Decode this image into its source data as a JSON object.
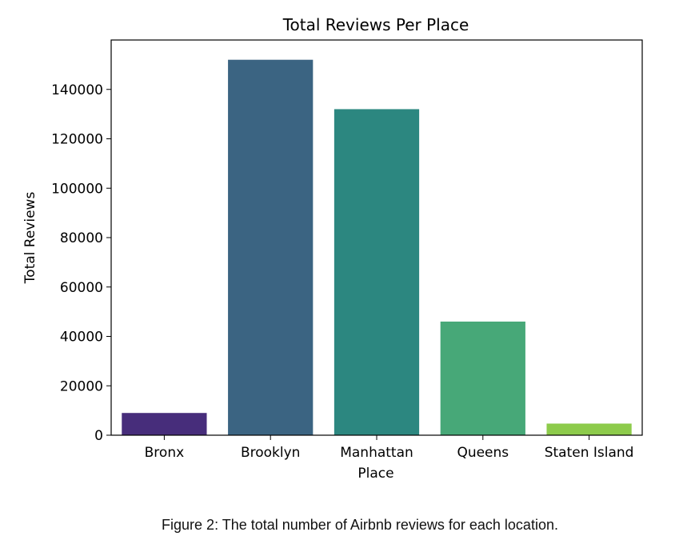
{
  "chart_data": {
    "type": "bar",
    "title": "Total Reviews Per Place",
    "xlabel": "Place",
    "ylabel": "Total Reviews",
    "categories": [
      "Bronx",
      "Brooklyn",
      "Manhattan",
      "Queens",
      "Staten Island"
    ],
    "values": [
      9000,
      152000,
      132000,
      46000,
      4700
    ],
    "colors": [
      "#472d7b",
      "#3b6482",
      "#2c8780",
      "#47a878",
      "#8dcb4b"
    ],
    "ylim": [
      0,
      160000
    ],
    "yticks": [
      0,
      20000,
      40000,
      60000,
      80000,
      100000,
      120000,
      140000
    ],
    "ytick_labels": [
      "0",
      "20000",
      "40000",
      "60000",
      "80000",
      "100000",
      "120000",
      "140000"
    ],
    "grid": false,
    "legend": null
  },
  "caption": "Figure 2: The total number of Airbnb reviews for each location."
}
